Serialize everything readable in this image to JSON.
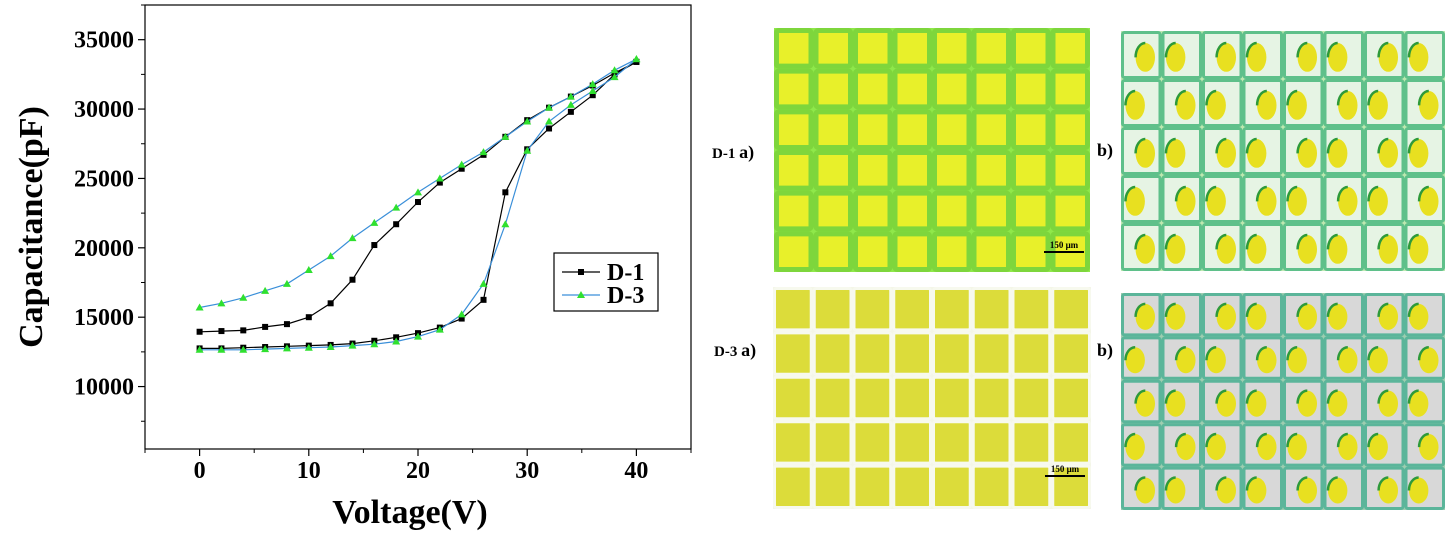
{
  "chart_data": {
    "type": "line",
    "title": "",
    "xlabel": "Voltage(V)",
    "ylabel": "Capacitance(pF)",
    "xlim": [
      -5,
      45
    ],
    "ylim": [
      5500,
      37500
    ],
    "x_ticks": [
      0,
      10,
      20,
      30,
      40
    ],
    "y_ticks": [
      10000,
      15000,
      20000,
      25000,
      30000,
      35000
    ],
    "grid": false,
    "legend_position": "right",
    "series": [
      {
        "name": "D-1",
        "color": "#000000",
        "marker": "square",
        "forward": {
          "x": [
            0,
            2,
            4,
            6,
            8,
            10,
            12,
            14,
            16,
            18,
            20,
            22,
            24,
            26,
            28,
            30,
            32,
            34,
            36,
            38,
            40
          ],
          "y": [
            12750,
            12750,
            12800,
            12850,
            12900,
            12950,
            13000,
            13100,
            13300,
            13550,
            13850,
            14250,
            14900,
            16250,
            24000,
            27100,
            28600,
            29800,
            31000,
            32500,
            33400
          ]
        },
        "reverse": {
          "x": [
            40,
            38,
            36,
            34,
            32,
            30,
            28,
            26,
            24,
            22,
            20,
            18,
            16,
            14,
            12,
            10,
            8,
            6,
            4,
            2,
            0
          ],
          "y": [
            33400,
            32600,
            31700,
            30900,
            30100,
            29200,
            28000,
            26700,
            25700,
            24700,
            23300,
            21700,
            20200,
            17700,
            16000,
            15000,
            14500,
            14300,
            14050,
            14000,
            13950
          ]
        }
      },
      {
        "name": "D-3",
        "color": "#3a8fd9",
        "marker_color": "#2fe02f",
        "marker": "triangle",
        "forward": {
          "x": [
            0,
            2,
            4,
            6,
            8,
            10,
            12,
            14,
            16,
            18,
            20,
            22,
            24,
            26,
            28,
            30,
            32,
            34,
            36,
            38,
            40
          ],
          "y": [
            12650,
            12650,
            12650,
            12700,
            12750,
            12800,
            12850,
            12950,
            13050,
            13250,
            13600,
            14100,
            15200,
            17400,
            21700,
            27000,
            29100,
            30300,
            31300,
            32300,
            33600
          ]
        },
        "reverse": {
          "x": [
            40,
            38,
            36,
            34,
            32,
            30,
            28,
            26,
            24,
            22,
            20,
            18,
            16,
            14,
            12,
            10,
            8,
            6,
            4,
            2,
            0
          ],
          "y": [
            33600,
            32800,
            31800,
            30900,
            30100,
            29100,
            28000,
            26900,
            26000,
            25000,
            24000,
            22900,
            21800,
            20700,
            19400,
            18400,
            17400,
            16900,
            16400,
            16000,
            15700
          ]
        }
      }
    ]
  },
  "images": {
    "d1_label": "D-1",
    "d3_label": "D-3",
    "label_a": "a)",
    "label_b": "b)",
    "scale_text": "150 μm"
  }
}
